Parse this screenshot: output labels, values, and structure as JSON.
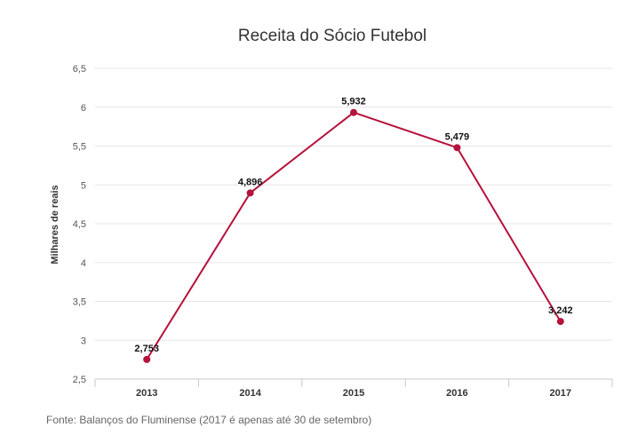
{
  "chart_data": {
    "type": "line",
    "title": "Receita do Sócio Futebol",
    "ylabel": "Milhares de reais",
    "xlabel": "",
    "categories": [
      "2013",
      "2014",
      "2015",
      "2016",
      "2017"
    ],
    "series": [
      {
        "values": [
          2.753,
          4.896,
          5.932,
          5.479,
          3.242
        ]
      }
    ],
    "data_labels": [
      "2,753",
      "4,896",
      "5,932",
      "5,479",
      "3,242"
    ],
    "ylim": [
      2.5,
      6.5
    ],
    "yticks": [
      2.5,
      3,
      3.5,
      4,
      4.5,
      5,
      5.5,
      6,
      6.5
    ],
    "ytick_labels": [
      "2,5",
      "3",
      "3,5",
      "4",
      "4,5",
      "5",
      "5,5",
      "6",
      "6,5"
    ],
    "grid": true,
    "legend": "none",
    "line_color": "#b5123c"
  },
  "source": "Fonte: Balanços do Fluminense (2017 é apenas até 30 de setembro)"
}
